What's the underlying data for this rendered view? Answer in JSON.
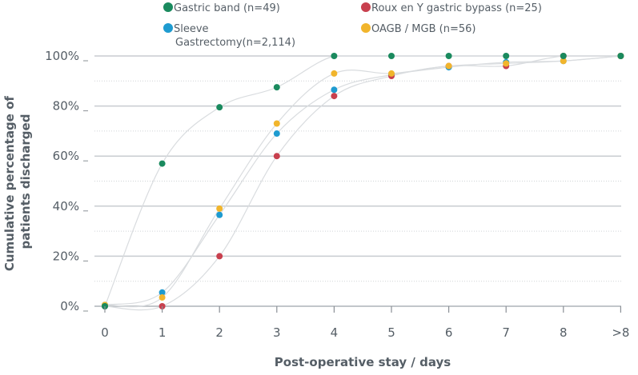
{
  "chart_data": {
    "type": "scatter",
    "xlabel": "Post-operative stay / days",
    "ylabel": "Cumulative percentage of patients discharged",
    "categories": [
      "0",
      "1",
      "2",
      "3",
      "4",
      "5",
      "6",
      "7",
      "8",
      ">8"
    ],
    "y_ticks": [
      "0%",
      "20%",
      "40%",
      "60%",
      "80%",
      "100%"
    ],
    "ylim": [
      0,
      100
    ],
    "grid": "horizontal",
    "legend_position": "top",
    "series": [
      {
        "name": "Gastric band (n=49)",
        "color": "#1a8a5e",
        "values": [
          0,
          57,
          79.5,
          87.5,
          100,
          100,
          100,
          100,
          100,
          100
        ]
      },
      {
        "name": "Roux en Y gastric bypass (n=25)",
        "color": "#c8404e",
        "values": [
          0,
          0,
          20,
          60,
          84,
          92,
          96,
          96,
          100,
          100
        ]
      },
      {
        "name": "Sleeve Gastrectomy(n=2,114)",
        "legend_lines": [
          "Sleeve",
          "Gastrectomy(n=2,114)"
        ],
        "color": "#1e9bd0",
        "values": [
          0.5,
          5.5,
          36.5,
          69,
          86.5,
          92.5,
          95.5,
          97.5,
          98,
          100
        ]
      },
      {
        "name": "OAGB / MGB (n=56)",
        "color": "#f1b52c",
        "values": [
          0.5,
          3.5,
          39,
          73,
          93,
          93,
          96,
          97,
          98,
          100
        ]
      }
    ]
  }
}
